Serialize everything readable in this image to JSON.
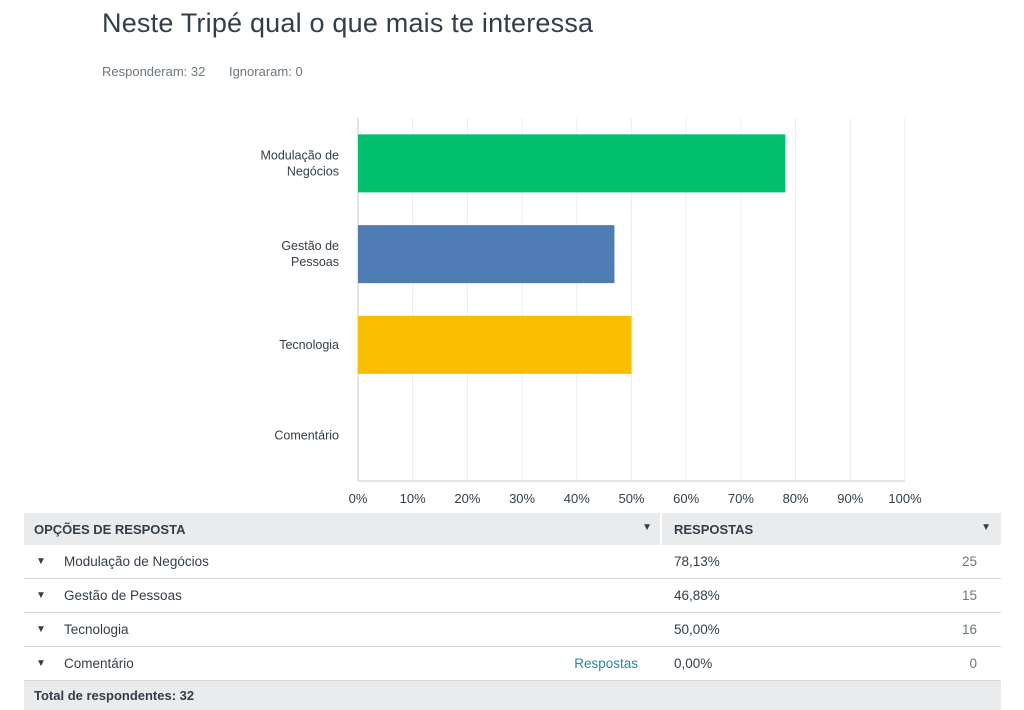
{
  "question": {
    "title": "Neste Tripé qual o que mais te interessa",
    "answered": "Responderam: 32",
    "skipped": "Ignoraram: 0"
  },
  "chart_data": {
    "type": "bar",
    "orientation": "horizontal",
    "categories": [
      [
        "Modulação de",
        "Negócios"
      ],
      [
        "Gestão de",
        "Pessoas"
      ],
      [
        "Tecnologia"
      ],
      [
        "Comentário"
      ]
    ],
    "values": [
      78.13,
      46.88,
      50.0,
      0.0
    ],
    "colors": [
      "#00bf6f",
      "#507cb6",
      "#f9be00",
      "#6bc8cd"
    ],
    "xlim": [
      0,
      100
    ],
    "xticks": [
      "0%",
      "10%",
      "20%",
      "30%",
      "40%",
      "50%",
      "60%",
      "70%",
      "80%",
      "90%",
      "100%"
    ],
    "grid": true
  },
  "table": {
    "col_options": "OPÇÕES DE RESPOSTA",
    "col_responses": "RESPOSTAS",
    "sort_icon": "caret-down-icon",
    "rows": [
      {
        "label": "Modulação de Negócios",
        "pct": "78,13%",
        "count": "25",
        "link": ""
      },
      {
        "label": "Gestão de Pessoas",
        "pct": "46,88%",
        "count": "15",
        "link": ""
      },
      {
        "label": "Tecnologia",
        "pct": "50,00%",
        "count": "16",
        "link": ""
      },
      {
        "label": "Comentário",
        "pct": "0,00%",
        "count": "0",
        "link": "Respostas"
      }
    ],
    "total": "Total de respondentes: 32"
  }
}
